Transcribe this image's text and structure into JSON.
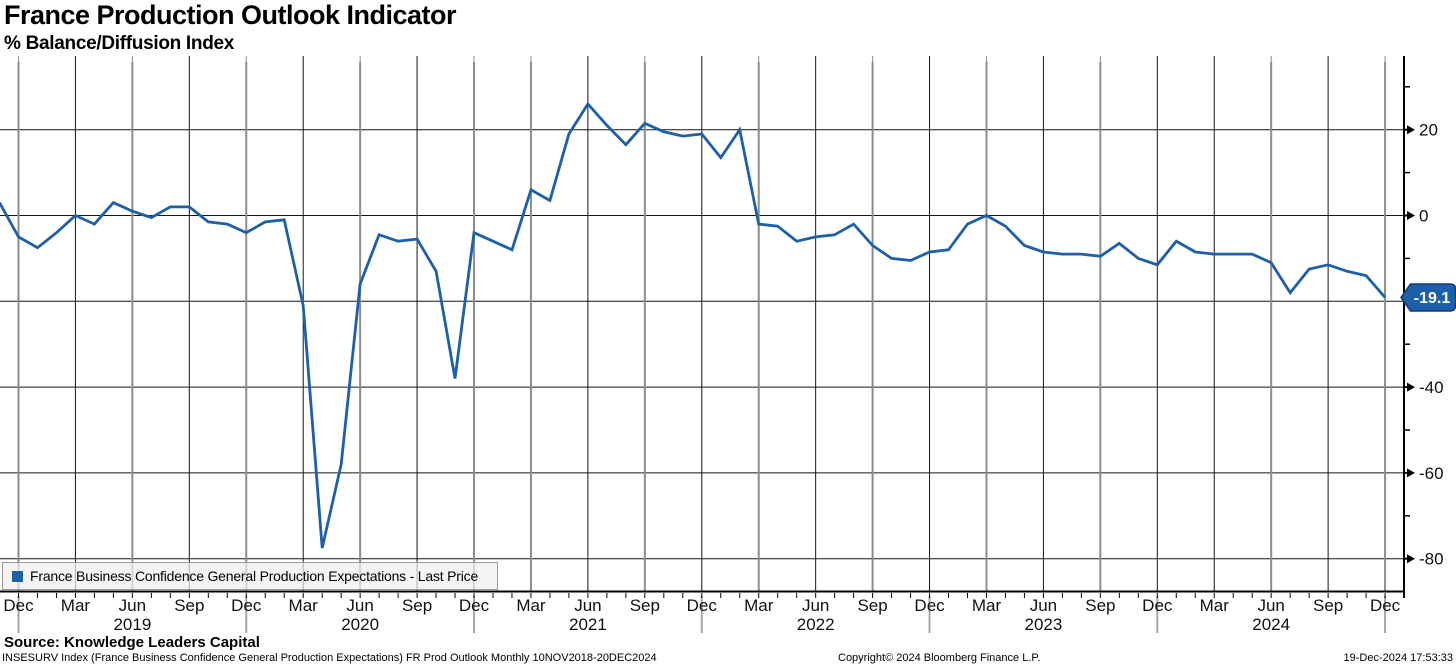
{
  "window": {
    "title": "France Production Outlook Indicator",
    "subtitle": "% Balance/Diffusion Index"
  },
  "legend": {
    "label": "France Business Confidence General Production Expectations - Last Price",
    "marker_color": "#1d5fa8"
  },
  "badge": {
    "text": "-19.1",
    "fill": "#1d5fa8",
    "border": "#123c74"
  },
  "footer": {
    "source": "Source: Knowledge Leaders Capital",
    "description": "INSESURV Index (France Business Confidence General Production Expectations) FR Prod Outlook  Monthly 10NOV2018-20DEC2024",
    "copyright": "Copyright© 2024 Bloomberg Finance L.P.",
    "timestamp": "19-Dec-2024 17:53:33"
  },
  "chart_data": {
    "type": "line",
    "title": "France Production Outlook Indicator",
    "ylabel": "% Balance/Diffusion Index",
    "grid": true,
    "legend_position": "bottom-left",
    "ylim": [
      -87.5,
      35.8
    ],
    "y_gridlines": [
      20,
      0,
      -20,
      -40,
      -60,
      -80
    ],
    "y_ticks_labeled": [
      20,
      0,
      -40,
      -60,
      -80
    ],
    "y_ticks_minor": [
      30,
      10,
      -10,
      -30,
      -50,
      -70
    ],
    "x_tick_labels": [
      "Dec",
      "Mar",
      "Jun",
      "Sep",
      "Dec",
      "Mar",
      "Jun",
      "Sep",
      "Dec",
      "Mar",
      "Jun",
      "Sep",
      "Dec",
      "Mar",
      "Jun",
      "Sep",
      "Dec",
      "Mar",
      "Jun",
      "Sep",
      "Dec",
      "Mar",
      "Jun",
      "Sep",
      "Dec"
    ],
    "year_labels": [
      "2019",
      "2020",
      "2021",
      "2022",
      "2023",
      "2024"
    ],
    "last_value": -19.1,
    "series": [
      {
        "name": "France Business Confidence General Production Expectations - Last Price",
        "color": "#1d5fa8",
        "x": [
          "2018-11",
          "2018-12",
          "2019-01",
          "2019-02",
          "2019-03",
          "2019-04",
          "2019-05",
          "2019-06",
          "2019-07",
          "2019-08",
          "2019-09",
          "2019-10",
          "2019-11",
          "2019-12",
          "2020-01",
          "2020-02",
          "2020-03",
          "2020-04",
          "2020-05",
          "2020-06",
          "2020-07",
          "2020-08",
          "2020-09",
          "2020-10",
          "2020-11",
          "2020-12",
          "2021-01",
          "2021-02",
          "2021-03",
          "2021-04",
          "2021-05",
          "2021-06",
          "2021-07",
          "2021-08",
          "2021-09",
          "2021-10",
          "2021-11",
          "2021-12",
          "2022-01",
          "2022-02",
          "2022-03",
          "2022-04",
          "2022-05",
          "2022-06",
          "2022-07",
          "2022-08",
          "2022-09",
          "2022-10",
          "2022-11",
          "2022-12",
          "2023-01",
          "2023-02",
          "2023-03",
          "2023-04",
          "2023-05",
          "2023-06",
          "2023-07",
          "2023-08",
          "2023-09",
          "2023-10",
          "2023-11",
          "2023-12",
          "2024-01",
          "2024-02",
          "2024-03",
          "2024-04",
          "2024-05",
          "2024-06",
          "2024-07",
          "2024-08",
          "2024-09",
          "2024-10",
          "2024-11",
          "2024-12"
        ],
        "values": [
          3,
          -5,
          -7.5,
          -4,
          0,
          -2,
          3,
          1,
          -0.5,
          2,
          2,
          -1.5,
          -2,
          -4,
          -1.5,
          -1,
          -21,
          -77.5,
          -58,
          -16,
          -4.5,
          -6,
          -5.5,
          -13,
          -38,
          -4,
          -6,
          -8,
          6,
          3.5,
          19,
          26,
          21,
          16.5,
          21.5,
          19.5,
          18.5,
          19,
          13.5,
          20,
          -2,
          -2.5,
          -6,
          -5,
          -4.5,
          -2,
          -7,
          -10,
          -10.5,
          -8.5,
          -8,
          -2,
          0,
          -2.5,
          -7,
          -8.5,
          -9,
          -9,
          -9.5,
          -6.5,
          -10,
          -11.5,
          -6,
          -8.5,
          -9,
          -9,
          -9,
          -11,
          -18,
          -12.5,
          -11.5,
          -13,
          -14,
          -19.1
        ]
      }
    ]
  }
}
